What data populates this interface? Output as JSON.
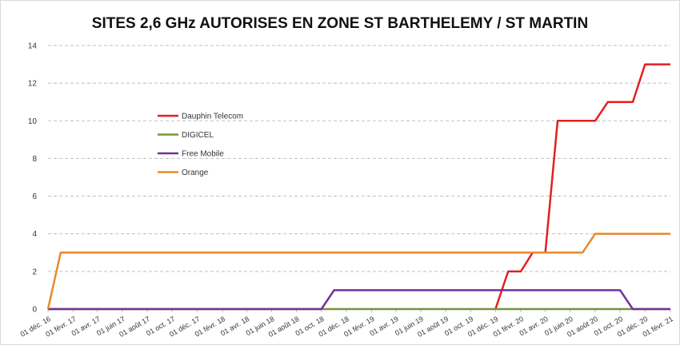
{
  "chart_data": {
    "type": "line",
    "title": "SITES 2,6 GHz AUTORISES EN ZONE ST BARTHELEMY / ST MARTIN",
    "x": [
      "2016-12-01",
      "2017-01-01",
      "2017-02-01",
      "2017-03-01",
      "2017-04-01",
      "2017-05-01",
      "2017-06-01",
      "2017-07-01",
      "2017-08-01",
      "2017-09-01",
      "2017-10-01",
      "2017-11-01",
      "2017-12-01",
      "2018-01-01",
      "2018-02-01",
      "2018-03-01",
      "2018-04-01",
      "2018-05-01",
      "2018-06-01",
      "2018-07-01",
      "2018-08-01",
      "2018-09-01",
      "2018-10-01",
      "2018-11-01",
      "2018-12-01",
      "2019-01-01",
      "2019-02-01",
      "2019-03-01",
      "2019-04-01",
      "2019-05-01",
      "2019-06-01",
      "2019-07-01",
      "2019-08-01",
      "2019-09-01",
      "2019-10-01",
      "2019-11-01",
      "2019-12-01",
      "2020-01-01",
      "2020-02-01",
      "2020-03-01",
      "2020-04-01",
      "2020-05-01",
      "2020-06-01",
      "2020-07-01",
      "2020-08-01",
      "2020-09-01",
      "2020-10-01",
      "2020-11-01",
      "2020-12-01",
      "2021-01-01",
      "2021-02-01"
    ],
    "series": [
      {
        "name": "Dauphin Telecom",
        "color": "#e02020",
        "values": [
          null,
          null,
          null,
          null,
          null,
          null,
          null,
          null,
          null,
          null,
          null,
          null,
          null,
          null,
          null,
          null,
          null,
          null,
          null,
          null,
          null,
          null,
          null,
          null,
          null,
          null,
          null,
          null,
          null,
          null,
          null,
          null,
          null,
          null,
          null,
          null,
          0,
          2,
          2,
          3,
          3,
          10,
          10,
          10,
          10,
          11,
          11,
          11,
          13,
          13,
          13
        ]
      },
      {
        "name": "DIGICEL",
        "color": "#77933c",
        "values": [
          0,
          0,
          0,
          0,
          0,
          0,
          0,
          0,
          0,
          0,
          0,
          0,
          0,
          0,
          0,
          0,
          0,
          0,
          0,
          0,
          0,
          0,
          0,
          0,
          0,
          0,
          0,
          0,
          0,
          0,
          0,
          0,
          0,
          0,
          0,
          0,
          0,
          0,
          0,
          0,
          0,
          0,
          0,
          0,
          0,
          0,
          0,
          0,
          0,
          0,
          0
        ]
      },
      {
        "name": "Free Mobile",
        "color": "#7030a0",
        "values": [
          0,
          0,
          0,
          0,
          0,
          0,
          0,
          0,
          0,
          0,
          0,
          0,
          0,
          0,
          0,
          0,
          0,
          0,
          0,
          0,
          0,
          0,
          0,
          1,
          1,
          1,
          1,
          1,
          1,
          1,
          1,
          1,
          1,
          1,
          1,
          1,
          1,
          1,
          1,
          1,
          1,
          1,
          1,
          1,
          1,
          1,
          1,
          0,
          0,
          0,
          0
        ]
      },
      {
        "name": "Orange",
        "color": "#e8892b",
        "values": [
          0,
          3,
          3,
          3,
          3,
          3,
          3,
          3,
          3,
          3,
          3,
          3,
          3,
          3,
          3,
          3,
          3,
          3,
          3,
          3,
          3,
          3,
          3,
          3,
          3,
          3,
          3,
          3,
          3,
          3,
          3,
          3,
          3,
          3,
          3,
          3,
          3,
          3,
          3,
          3,
          3,
          3,
          3,
          3,
          4,
          4,
          4,
          4,
          4,
          4,
          4
        ]
      }
    ],
    "xlim": [
      "2016-12-01",
      "2021-02-01"
    ],
    "xticks": [
      {
        "value": "2016-12-01",
        "label": "01 déc. 16"
      },
      {
        "value": "2017-02-01",
        "label": "01 févr. 17"
      },
      {
        "value": "2017-04-01",
        "label": "01 avr. 17"
      },
      {
        "value": "2017-06-01",
        "label": "01 juin 17"
      },
      {
        "value": "2017-08-01",
        "label": "01 août 17"
      },
      {
        "value": "2017-10-01",
        "label": "01 oct. 17"
      },
      {
        "value": "2017-12-01",
        "label": "01 déc. 17"
      },
      {
        "value": "2018-02-01",
        "label": "01 févr. 18"
      },
      {
        "value": "2018-04-01",
        "label": "01 avr. 18"
      },
      {
        "value": "2018-06-01",
        "label": "01 juin 18"
      },
      {
        "value": "2018-08-01",
        "label": "01 août 18"
      },
      {
        "value": "2018-10-01",
        "label": "01 oct. 18"
      },
      {
        "value": "2018-12-01",
        "label": "01 déc. 18"
      },
      {
        "value": "2019-02-01",
        "label": "01 févr. 19"
      },
      {
        "value": "2019-04-01",
        "label": "01 avr. 19"
      },
      {
        "value": "2019-06-01",
        "label": "01 juin 19"
      },
      {
        "value": "2019-08-01",
        "label": "01 août 19"
      },
      {
        "value": "2019-10-01",
        "label": "01 oct. 19"
      },
      {
        "value": "2019-12-01",
        "label": "01 déc. 19"
      },
      {
        "value": "2020-02-01",
        "label": "01 févr. 20"
      },
      {
        "value": "2020-04-01",
        "label": "01 avr. 20"
      },
      {
        "value": "2020-06-01",
        "label": "01 juin 20"
      },
      {
        "value": "2020-08-01",
        "label": "01 août 20"
      },
      {
        "value": "2020-10-01",
        "label": "01 oct. 20"
      },
      {
        "value": "2020-12-01",
        "label": "01 déc. 20"
      },
      {
        "value": "2021-02-01",
        "label": "01 févr. 21"
      }
    ],
    "ylim": [
      0,
      14
    ],
    "yticks": [
      0,
      2,
      4,
      6,
      8,
      10,
      12,
      14
    ],
    "grid": true,
    "legend": "left"
  }
}
